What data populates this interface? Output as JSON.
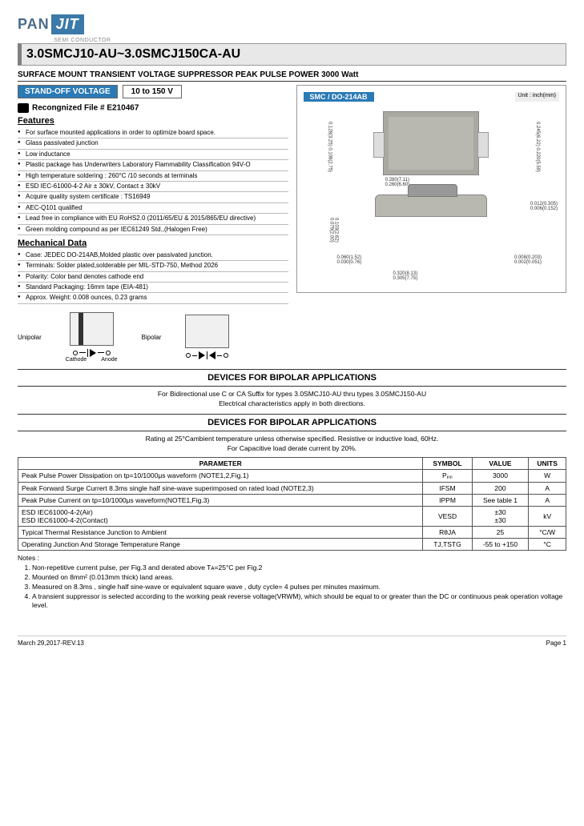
{
  "logo": {
    "pan": "PAN",
    "jit": "JIT",
    "semi": "SEMI\nCONDUCTOR"
  },
  "main_title": "3.0SMCJ10-AU~3.0SMCJ150CA-AU",
  "subtitle": "SURFACE MOUNT TRANSIENT VOLTAGE SUPPRESSOR PEAK PULSE POWER 3000 Watt",
  "standoff_label": "STAND-OFF VOLTAGE",
  "standoff_value": "10 to 150 V",
  "pkg_label": "SMC / DO-214AB",
  "pkg_unit": "Unit : inch(mm)",
  "recognized": "Recongnized File # E210467",
  "features_title": "Features",
  "features": [
    "For surface mounted applications in order to optimize board space.",
    "Glass passivated junction",
    "Low inductance",
    "Plastic package has Underwriters Laboratory Flammability Classification 94V-O",
    "High temperature soldering : 260°C /10 seconds at terminals",
    "ESD IEC-61000-4-2 Air ± 30kV, Contact ± 30kV",
    "Acquire quality system certificate : TS16949",
    "AEC-Q101 qualified",
    "Lead free in compliance with EU RoHS2.0 (2011/65/EU & 2015/865/EU directive)",
    "Green molding compound as per IEC61249 Std.,(Halogen Free)"
  ],
  "mech_title": "Mechanical Data",
  "mech": [
    "Case: JEDEC DO-214AB,Molded plastic over passivated junction.",
    "Terminals: Solder plated,solderable per MIL-STD-750, Method 2026",
    "Polarity: Color band denotes cathode end",
    "Standard Packaging: 16mm tape (EIA-481)",
    "Approx. Weight: 0.008 ounces, 0.23 grams"
  ],
  "dims": {
    "d1": "0.128(3.25)\n0.108(2.75)",
    "d2": "0.245(6.22)\n0.220(5.59)",
    "d3": "0.280(7.11)\n0.260(6.60)",
    "d4": "0.012(0.305)\n0.006(0.152)",
    "d5": "0.103(2.62)\n0.079(2.00)",
    "d6": "0.060(1.52)\n0.030(0.76)",
    "d7": "0.008(0.203)\n0.002(0.051)",
    "d8": "0.320(8.13)\n0.305(7.75)"
  },
  "polarity": {
    "unipolar": "Unipolar",
    "bipolar": "Bipolar",
    "cathode": "Cathode",
    "anode": "Anode"
  },
  "bipolar_header": "DEVICES  FOR  BIPOLAR  APPLICATIONS",
  "bipolar_text1": "For Bidirectional use C or CA Suffix for types 3.0SMCJ10-AU thru types 3.0SMCJ150-AU",
  "bipolar_text2": "Electrical characteristics apply in both directions.",
  "rating_header": "DEVICES  FOR  BIPOLAR  APPLICATIONS",
  "rating_text1": "Rating at 25°Cambient temperature unless otherwise specified. Resistive or inductive load, 60Hz.",
  "rating_text2": "For Capacitive load derate current by 20%.",
  "table": {
    "headers": [
      "PARAMETER",
      "SYMBOL",
      "VALUE",
      "UNITS"
    ],
    "rows": [
      [
        "Peak Pulse Power Dissipation on tp=10/1000μs waveform (NOTE1,2,Fig.1)",
        "Pₚₚ",
        "3000",
        "W"
      ],
      [
        "Peak Forward Surge Currert 8.3ms single half sine-wave superimposed on rated load (NOTE2,3)",
        "IFSM",
        "200",
        "A"
      ],
      [
        "Peak Pulse Current on tp=10/1000μs waveform(NOTE1,Fig.3)",
        "IPPM",
        "See table 1",
        "A"
      ],
      [
        "ESD IEC61000-4-2(Air)\nESD IEC61000-4-2(Contact)",
        "VESD",
        "±30\n±30",
        "kV"
      ],
      [
        "Typical Thermal Resistance Junction to Ambient",
        "RθJA",
        "25",
        "°C/W"
      ],
      [
        "Operating Junction And Storage Temperature Range",
        "TJ,TSTG",
        "-55 to +150",
        "°C"
      ]
    ]
  },
  "notes_title": "Notes :",
  "notes": [
    "Non-repetitive current pulse, per Fig.3 and derated above Tᴀ=25°C per Fig.2",
    "Mounted on 8mm² (0.013mm thick) land areas.",
    "Measured on 8.3ms , single half sine-wave or equivalent square wave , duty cycle= 4 pulses per minutes maximum.",
    "A transient suppressor is selected according to the working peak reverse voltage(VRWM), which should be equal to or greater than the DC or continuous peak operation voltage level."
  ],
  "footer": {
    "date": "March 29,2017-REV.13",
    "page": "Page 1"
  }
}
